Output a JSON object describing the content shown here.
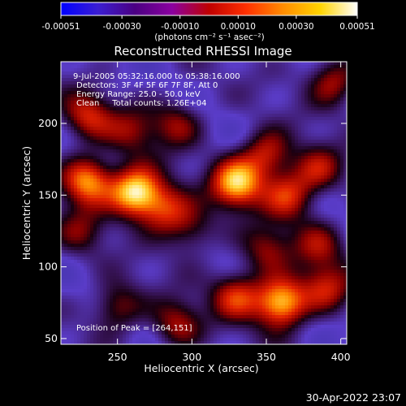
{
  "colorbar": {
    "ticks": [
      "-0.00051",
      "-0.00030",
      "-0.00010",
      "0.00010",
      "0.00030",
      "0.00051"
    ],
    "tick_values": [
      -0.00051,
      -0.0003,
      -0.0001,
      0.0001,
      0.0003,
      0.00051
    ],
    "range": [
      -0.00051,
      0.00051
    ],
    "unit_label": "(photons cm⁻² s⁻¹ asec⁻²)",
    "colormap": [
      "#0000ff",
      "#3b1ed2",
      "#4b0082",
      "#8b00a0",
      "#c00000",
      "#ff3000",
      "#ff8c00",
      "#ffd400",
      "#ffffff"
    ]
  },
  "chart_data": {
    "type": "heatmap",
    "title": "Reconstructed RHESSI Image",
    "xlabel": "Heliocentric X (arcsec)",
    "ylabel": "Heliocentric Y (arcsec)",
    "xlim": [
      212,
      404
    ],
    "ylim": [
      46,
      243
    ],
    "xticks": [
      250,
      300,
      350,
      400
    ],
    "yticks": [
      50,
      100,
      150,
      200
    ],
    "peak": [
      264,
      151
    ],
    "hotspots": [
      {
        "x": 262,
        "y": 152,
        "amp": 1.0
      },
      {
        "x": 230,
        "y": 160,
        "amp": 0.8
      },
      {
        "x": 282,
        "y": 140,
        "amp": 0.55
      },
      {
        "x": 330,
        "y": 158,
        "amp": 0.85
      },
      {
        "x": 365,
        "y": 150,
        "amp": 0.55
      },
      {
        "x": 385,
        "y": 168,
        "amp": 0.45
      },
      {
        "x": 350,
        "y": 178,
        "amp": 0.55
      },
      {
        "x": 290,
        "y": 200,
        "amp": 0.4
      },
      {
        "x": 230,
        "y": 205,
        "amp": 0.5
      },
      {
        "x": 260,
        "y": 195,
        "amp": 0.35
      },
      {
        "x": 300,
        "y": 125,
        "amp": 0.35
      },
      {
        "x": 350,
        "y": 112,
        "amp": 0.4
      },
      {
        "x": 360,
        "y": 75,
        "amp": 0.95
      },
      {
        "x": 330,
        "y": 80,
        "amp": 0.55
      },
      {
        "x": 390,
        "y": 85,
        "amp": 0.5
      },
      {
        "x": 290,
        "y": 60,
        "amp": 0.45
      },
      {
        "x": 250,
        "y": 72,
        "amp": 0.45
      },
      {
        "x": 225,
        "y": 125,
        "amp": 0.3
      },
      {
        "x": 395,
        "y": 230,
        "amp": 0.5
      },
      {
        "x": 385,
        "y": 115,
        "amp": 0.35
      }
    ],
    "annotations": {
      "time": "9-Jul-2005 05:32:16.000 to 05:38:16.000",
      "detectors": "Detectors: 3F 4F 5F 6F 7F 8F, Att 0",
      "energy": "Energy Range: 25.0 - 50.0 keV",
      "clean": "Clean     Total counts: 1.26E+04",
      "peak": "Position of Peak = [264,151]"
    }
  },
  "footer": {
    "timestamp": "30-Apr-2022 23:07"
  }
}
